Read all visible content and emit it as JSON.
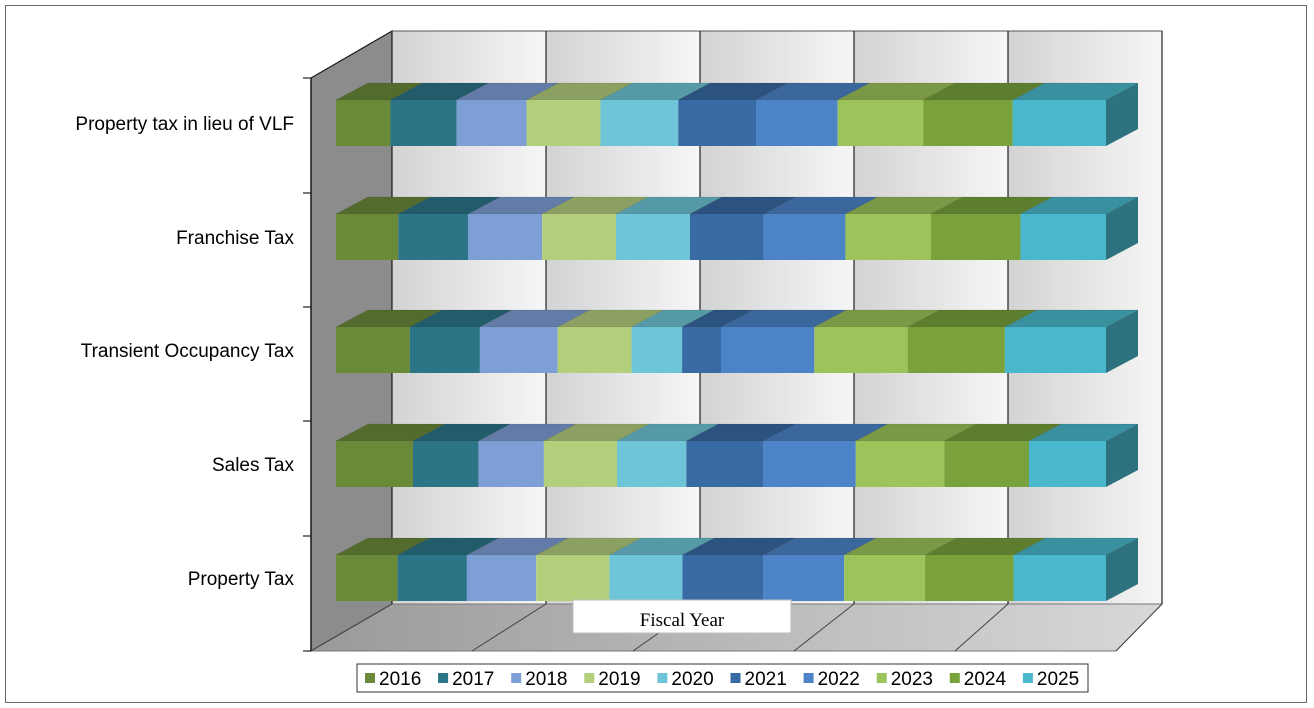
{
  "chart_data": {
    "type": "bar",
    "orientation": "horizontal",
    "stacked": "100%",
    "style": "3d",
    "title": "",
    "xlabel": "Fiscal Year",
    "ylabel": "",
    "grid": true,
    "legend_position": "bottom",
    "xlim": [
      0,
      100
    ],
    "categories": [
      "Property tax in lieu of VLF",
      "Franchise Tax",
      "Transient Occupancy Tax",
      "Sales Tax",
      "Property Tax"
    ],
    "series": [
      {
        "name": "2016",
        "color": "#6a8a3a",
        "values": [
          7,
          8,
          9.5,
          10,
          8
        ]
      },
      {
        "name": "2017",
        "color": "#2b7586",
        "values": [
          8.5,
          9,
          9,
          8.5,
          9
        ]
      },
      {
        "name": "2018",
        "color": "#7e9fd6",
        "values": [
          9,
          9.5,
          10,
          8.5,
          9
        ]
      },
      {
        "name": "2019",
        "color": "#b3cf7c",
        "values": [
          9.5,
          9.5,
          9.5,
          9.5,
          9.5
        ]
      },
      {
        "name": "2020",
        "color": "#6ec5d8",
        "values": [
          10,
          9.5,
          6.5,
          9,
          9.5
        ]
      },
      {
        "name": "2021",
        "color": "#386aa3",
        "values": [
          10,
          9.5,
          5,
          10,
          10.5
        ]
      },
      {
        "name": "2022",
        "color": "#4d84c8",
        "values": [
          10.5,
          10.5,
          12,
          12,
          10.5
        ]
      },
      {
        "name": "2023",
        "color": "#9cc45a",
        "values": [
          11,
          11,
          12,
          11.5,
          10.5
        ]
      },
      {
        "name": "2024",
        "color": "#79a23c",
        "values": [
          11.5,
          11.5,
          12.5,
          11,
          11.5
        ]
      },
      {
        "name": "2025",
        "color": "#49b8cc",
        "values": [
          12,
          11,
          13,
          10,
          12
        ]
      }
    ]
  }
}
